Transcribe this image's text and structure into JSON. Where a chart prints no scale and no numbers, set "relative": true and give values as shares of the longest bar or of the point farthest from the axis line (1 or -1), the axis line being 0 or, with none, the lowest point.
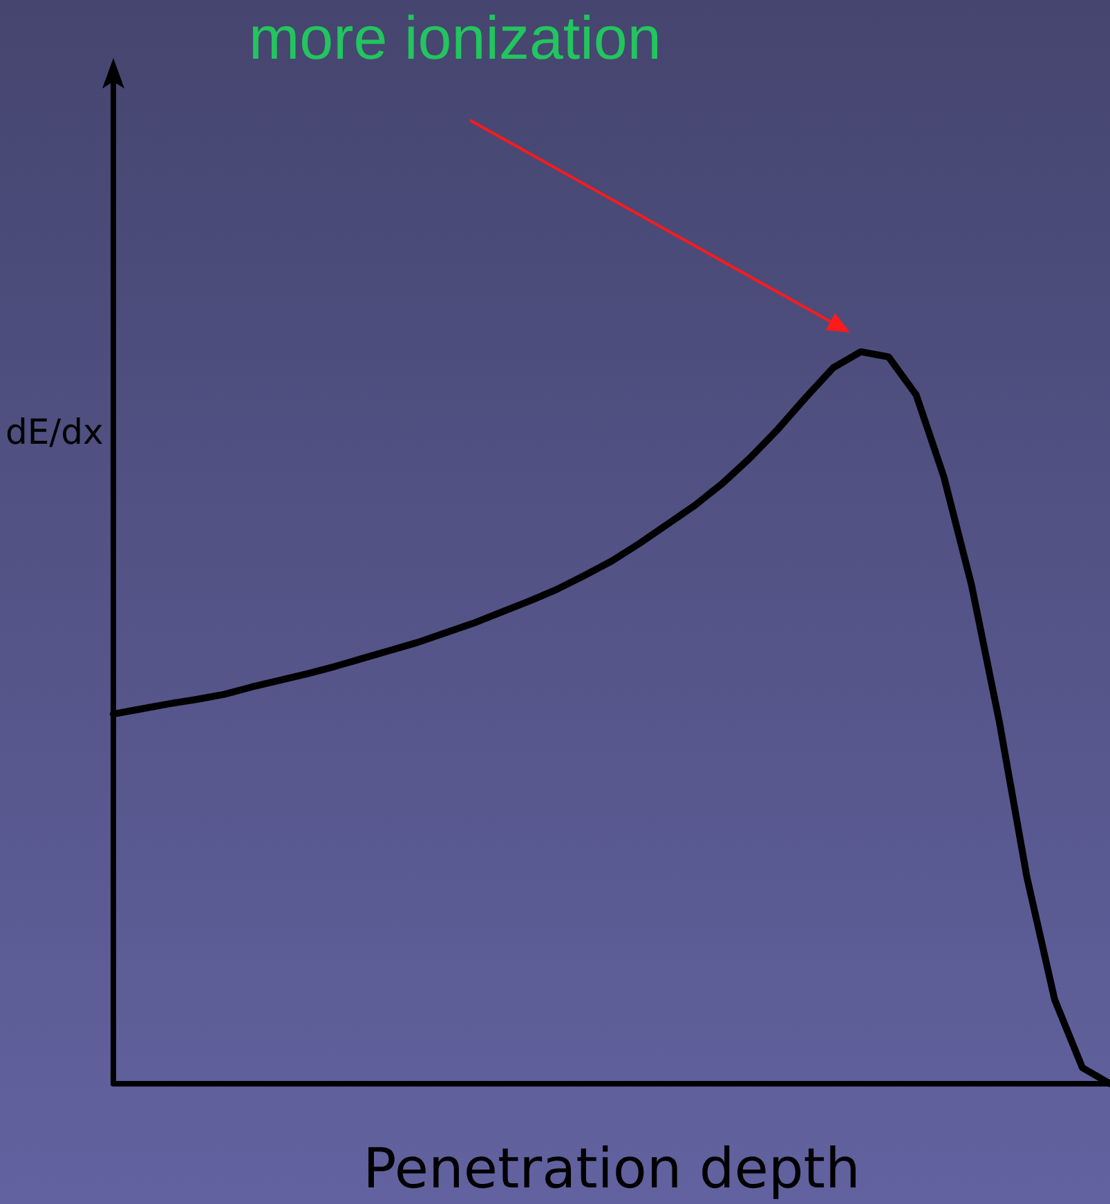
{
  "chart_data": {
    "type": "line",
    "relative": true,
    "xlabel": "Penetration depth",
    "ylabel": "dE/dx",
    "annotations": [
      "more ionization"
    ],
    "color": "#000000",
    "marker": "none",
    "grid": false,
    "categories": [
      null,
      null,
      null,
      null,
      null,
      null,
      null,
      null,
      null,
      null,
      null,
      null,
      null,
      null,
      null,
      null,
      null,
      null,
      null,
      null,
      null,
      null,
      null,
      null,
      null,
      null,
      null,
      null,
      null,
      null,
      null,
      null,
      null,
      null,
      null,
      null,
      null
    ],
    "values": [
      0.505,
      0.512,
      0.519,
      0.525,
      0.532,
      0.542,
      0.551,
      0.56,
      0.57,
      0.581,
      0.592,
      0.603,
      0.616,
      0.629,
      0.644,
      0.659,
      0.675,
      0.694,
      0.714,
      0.738,
      0.764,
      0.79,
      0.82,
      0.855,
      0.894,
      0.937,
      0.978,
      1.0,
      0.993,
      0.941,
      0.829,
      0.681,
      0.495,
      0.282,
      0.115,
      0.022,
      0.0
    ]
  }
}
